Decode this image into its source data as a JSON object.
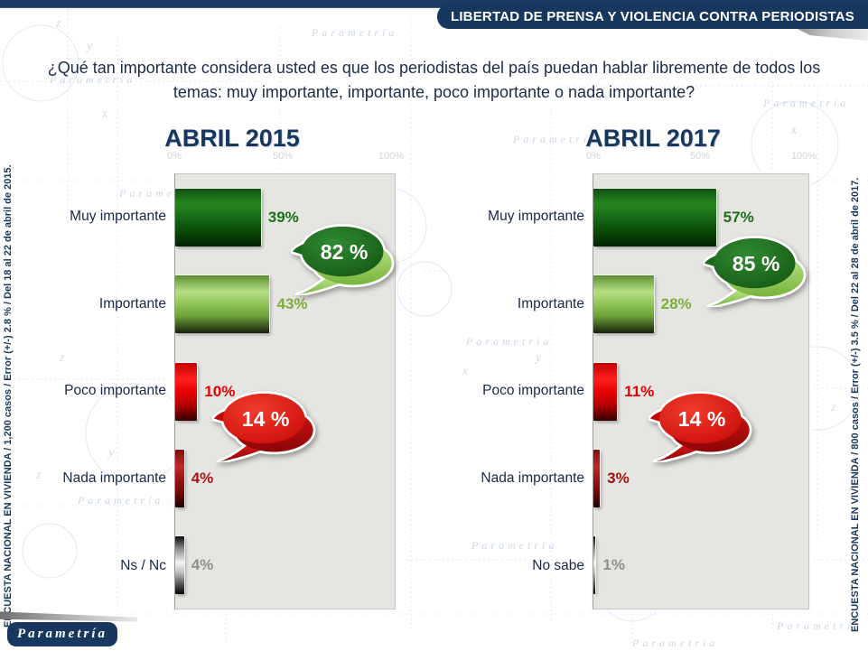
{
  "banner": {
    "title": "LIBERTAD DE PRENSA Y VIOLENCIA CONTRA PERIODISTAS"
  },
  "question": {
    "text": "¿Qué tan importante considera usted es que los periodistas del país puedan hablar libremente de todos los temas: muy importante, importante, poco importante o nada importante?"
  },
  "watermark": "Parametría",
  "decor_letters": [
    "x",
    "y",
    "z"
  ],
  "side_notes": {
    "left": "ENCUESTA NACIONAL EN VIVIENDA / 1,200 casos / Error (+/-) 2.8 % / Del 18 al 22 de abril de 2015.",
    "right": "ENCUESTA NACIONAL EN VIVIENDA / 800 casos / Error (+/-) 3.5 % / Del 22 al 28 de abril de 2017."
  },
  "logo": {
    "text": "Parametría"
  },
  "chart_data": [
    {
      "type": "bar",
      "orientation": "horizontal",
      "title": "ABRIL 2015",
      "xlim": [
        0,
        100
      ],
      "x_ticks": [
        "0%",
        "50%",
        "100%"
      ],
      "grid": false,
      "categories": [
        "Muy importante",
        "Importante",
        "Poco importante",
        "Nada importante",
        "Ns / Nc"
      ],
      "values": [
        39,
        43,
        10,
        4,
        4
      ],
      "labels": [
        "39%",
        "43%",
        "10%",
        "4%",
        "4%"
      ],
      "bar_colors": [
        "#1A701A",
        "#94C75B",
        "#EA0404",
        "#9E1414",
        "#BFBFBF"
      ],
      "label_colors": [
        "#1E6E1E",
        "#7CAF3A",
        "#E30000",
        "#A31515",
        "#8F8F8F"
      ],
      "callouts": [
        {
          "text": "82 %",
          "color": "green"
        },
        {
          "text": "14 %",
          "color": "red"
        }
      ]
    },
    {
      "type": "bar",
      "orientation": "horizontal",
      "title": "ABRIL 2017",
      "xlim": [
        0,
        100
      ],
      "x_ticks": [
        "0%",
        "50%",
        "100%"
      ],
      "grid": false,
      "categories": [
        "Muy importante",
        "Importante",
        "Poco importante",
        "Nada importante",
        "No sabe"
      ],
      "values": [
        57,
        28,
        11,
        3,
        1
      ],
      "labels": [
        "57%",
        "28%",
        "11%",
        "3%",
        "1%"
      ],
      "bar_colors": [
        "#1A701A",
        "#94C75B",
        "#EA0404",
        "#9E1414",
        "#BFBFBF"
      ],
      "label_colors": [
        "#1E6E1E",
        "#7CAF3A",
        "#E30000",
        "#A31515",
        "#8F8F8F"
      ],
      "callouts": [
        {
          "text": "85 %",
          "color": "green"
        },
        {
          "text": "14 %",
          "color": "red"
        }
      ]
    }
  ]
}
